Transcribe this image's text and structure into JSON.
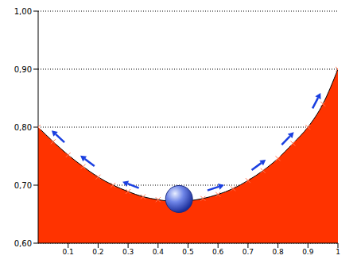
{
  "chart_data": {
    "type": "area",
    "x": [
      0,
      0.05,
      0.1,
      0.15,
      0.2,
      0.25,
      0.3,
      0.35,
      0.4,
      0.45,
      0.5,
      0.55,
      0.6,
      0.65,
      0.7,
      0.75,
      0.8,
      0.85,
      0.9,
      0.95,
      1
    ],
    "values": [
      0.8,
      0.775,
      0.752,
      0.732,
      0.714,
      0.7,
      0.689,
      0.68,
      0.675,
      0.672,
      0.673,
      0.677,
      0.684,
      0.694,
      0.708,
      0.725,
      0.746,
      0.772,
      0.8,
      0.84,
      0.9
    ],
    "color": "#ff3300",
    "marker": "x",
    "xlim": [
      0,
      1
    ],
    "ylim": [
      0.6,
      1.0
    ],
    "xticks": [
      0.1,
      0.2,
      0.3,
      0.4,
      0.5,
      0.6,
      0.7,
      0.8,
      0.9,
      1
    ],
    "yticks": [
      {
        "value": 0.6,
        "label": "0,60"
      },
      {
        "value": 0.7,
        "label": "0,70"
      },
      {
        "value": 0.8,
        "label": "0,80"
      },
      {
        "value": 0.9,
        "label": "0,90"
      },
      {
        "value": 1.0,
        "label": "1,00"
      }
    ],
    "grid": true,
    "ball": {
      "x": 0.47,
      "y": 0.672
    }
  }
}
